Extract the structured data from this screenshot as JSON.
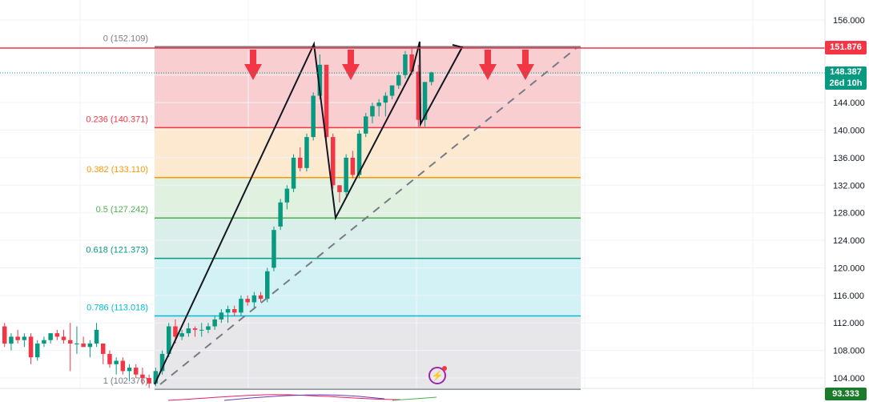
{
  "chart_data": {
    "type": "candlestick",
    "ylim": [
      102.0,
      157.0
    ],
    "y_ticks": [
      "156.000",
      "152.000",
      "148.000",
      "144.000",
      "140.000",
      "136.000",
      "132.000",
      "128.000",
      "124.000",
      "120.000",
      "116.000",
      "112.000",
      "108.000",
      "104.000"
    ],
    "y_tick_values": [
      156,
      152,
      148,
      144,
      140,
      136,
      132,
      128,
      124,
      120,
      116,
      112,
      108,
      104
    ],
    "current_price_line": {
      "value": 151.876,
      "label": "151.876",
      "color": "#f23645"
    },
    "last_price": {
      "value": 148.387,
      "label": "148.387",
      "countdown": "26d 10h",
      "color": "#089981"
    },
    "oscillator_value": {
      "label": "93.333",
      "color": "#1b7b2a"
    },
    "fib_levels": [
      {
        "ratio": "0",
        "value": 152.109,
        "label": "0 (152.109)",
        "line_color": "#787b86",
        "fill": "#f7c6c9",
        "text_color": "#787b86"
      },
      {
        "ratio": "0.236",
        "value": 140.371,
        "label": "0.236 (140.371)",
        "line_color": "#f23645",
        "fill": "#fde4c8",
        "text_color": "#f23645"
      },
      {
        "ratio": "0.382",
        "value": 133.11,
        "label": "0.382 (133.110)",
        "line_color": "#ff9800",
        "fill": "#dcefd9",
        "text_color": "#ff9800"
      },
      {
        "ratio": "0.5",
        "value": 127.242,
        "label": "0.5 (127.242)",
        "line_color": "#4caf50",
        "fill": "#d3ece6",
        "text_color": "#4caf50"
      },
      {
        "ratio": "0.618",
        "value": 121.373,
        "label": "0.618 (121.373)",
        "line_color": "#089981",
        "fill": "#caf0f3",
        "text_color": "#089981"
      },
      {
        "ratio": "0.786",
        "value": 113.018,
        "label": "0.786 (113.018)",
        "line_color": "#00bcd4",
        "fill": "#e3e3e5",
        "text_color": "#00bcd4"
      },
      {
        "ratio": "1",
        "value": 102.376,
        "label": "1 (102.376)",
        "line_color": "#787b86",
        "fill": "none",
        "text_color": "#787b86"
      }
    ],
    "candles": [
      [
        111.5,
        112.0,
        108.5,
        109.0
      ],
      [
        109.0,
        110.5,
        108.0,
        110.0
      ],
      [
        110.0,
        111.0,
        109.0,
        109.5
      ],
      [
        109.5,
        110.5,
        108.5,
        110.0
      ],
      [
        110.0,
        110.5,
        106.0,
        107.0
      ],
      [
        107.0,
        109.5,
        106.5,
        109.0
      ],
      [
        109.0,
        110.0,
        108.5,
        109.5
      ],
      [
        109.5,
        110.5,
        109.0,
        110.5
      ],
      [
        110.5,
        111.0,
        109.5,
        110.0
      ],
      [
        110.0,
        111.0,
        109.0,
        109.5
      ],
      [
        109.5,
        112.0,
        105.0,
        109.0
      ],
      [
        109.0,
        111.5,
        107.5,
        109.0
      ],
      [
        109.0,
        110.0,
        108.5,
        108.5
      ],
      [
        108.5,
        109.5,
        107.0,
        109.0
      ],
      [
        109.0,
        112.0,
        108.5,
        111.0
      ],
      [
        109.0,
        109.0,
        106.0,
        107.5
      ],
      [
        107.5,
        108.0,
        105.5,
        106.0
      ],
      [
        106.0,
        107.0,
        104.5,
        106.5
      ],
      [
        106.5,
        107.0,
        104.5,
        105.0
      ],
      [
        105.0,
        106.0,
        103.5,
        105.5
      ],
      [
        105.5,
        106.0,
        104.0,
        104.5
      ],
      [
        104.5,
        105.5,
        103.0,
        104.0
      ],
      [
        104.0,
        104.5,
        102.5,
        103.2
      ],
      [
        103.2,
        105.5,
        102.8,
        105.0
      ],
      [
        105.0,
        108.0,
        104.5,
        107.5
      ],
      [
        107.5,
        112.0,
        107.0,
        111.5
      ],
      [
        111.5,
        112.5,
        109.0,
        110.0
      ],
      [
        110.0,
        111.0,
        109.5,
        110.5
      ],
      [
        110.5,
        112.0,
        110.0,
        111.2
      ],
      [
        111.2,
        111.5,
        110.0,
        111.0
      ],
      [
        111.0,
        112.0,
        110.0,
        111.0
      ],
      [
        111.0,
        112.0,
        110.5,
        111.5
      ],
      [
        111.5,
        113.0,
        111.0,
        112.5
      ],
      [
        112.5,
        114.0,
        112.0,
        113.5
      ],
      [
        113.5,
        114.5,
        112.0,
        114.0
      ],
      [
        114.0,
        114.5,
        113.0,
        113.5
      ],
      [
        113.5,
        116.0,
        113.0,
        115.5
      ],
      [
        115.5,
        116.0,
        114.5,
        115.0
      ],
      [
        115.0,
        116.5,
        114.0,
        116.0
      ],
      [
        116.0,
        116.5,
        115.0,
        115.5
      ],
      [
        115.5,
        120.0,
        115.0,
        119.5
      ],
      [
        120.0,
        126.0,
        119.5,
        125.5
      ],
      [
        126.0,
        130.0,
        125.5,
        129.5
      ],
      [
        129.5,
        132.0,
        128.5,
        131.5
      ],
      [
        131.5,
        136.5,
        131.0,
        136.0
      ],
      [
        136.0,
        137.5,
        134.0,
        134.5
      ],
      [
        134.5,
        139.5,
        134.0,
        139.0
      ],
      [
        139.0,
        145.5,
        138.5,
        145.0
      ],
      [
        145.0,
        151.0,
        144.5,
        149.5
      ],
      [
        149.5,
        149.5,
        138.0,
        139.0
      ],
      [
        139.0,
        139.5,
        131.5,
        132.0
      ],
      [
        132.0,
        132.0,
        129.5,
        131.0
      ],
      [
        131.0,
        136.5,
        130.5,
        136.0
      ],
      [
        136.0,
        137.0,
        133.0,
        133.5
      ],
      [
        133.5,
        140.0,
        133.0,
        139.5
      ],
      [
        139.5,
        142.5,
        139.0,
        142.0
      ],
      [
        142.0,
        144.0,
        141.0,
        143.5
      ],
      [
        143.5,
        144.5,
        142.0,
        144.0
      ],
      [
        144.0,
        145.5,
        142.0,
        145.0
      ],
      [
        145.0,
        146.5,
        144.5,
        146.5
      ],
      [
        146.5,
        148.5,
        146.0,
        148.0
      ],
      [
        148.0,
        151.5,
        147.5,
        151.0
      ],
      [
        151.0,
        152.0,
        148.0,
        148.5
      ],
      [
        148.5,
        149.5,
        140.5,
        141.5
      ],
      [
        141.5,
        147.0,
        140.5,
        147.0
      ],
      [
        147.0,
        148.5,
        146.5,
        148.4
      ]
    ]
  }
}
